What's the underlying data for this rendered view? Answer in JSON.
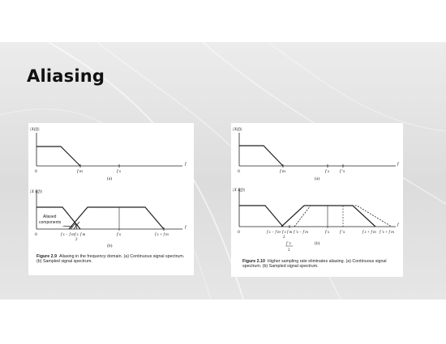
{
  "slide": {
    "title": "Aliasing",
    "colors": {
      "background": "#ffffff",
      "band": "#e2e2e2",
      "title": "#111111",
      "ink": "#222222"
    }
  },
  "figure_left": {
    "top_plot": {
      "ylabel": "|X(f)|",
      "tick_origin": "0",
      "tick_fm": "f m",
      "tick_fs": "f s",
      "axis_f": "f",
      "sublabel": "(a)"
    },
    "bottom_plot": {
      "ylabel": "|X s(f)|",
      "annotation_line1": "Aliased",
      "annotation_line2": "components",
      "tick_origin": "0",
      "tick_fs_minus_fm": "f s − f m",
      "tick_fs_half": "f s",
      "tick_fs_half_den": "2",
      "tick_fm": "f m",
      "tick_fs": "f s",
      "tick_fs_plus_fm": "f s + f m",
      "axis_f": "f",
      "sublabel": "(b)"
    },
    "caption_label": "Figure 2.9",
    "caption_text": "Aliasing in the frequency domain. (a) Continuous signal spectrum. (b) Sampled signal spectrum."
  },
  "figure_right": {
    "top_plot": {
      "ylabel": "|X(f)|",
      "tick_origin": "0",
      "tick_fm": "f m",
      "tick_fs": "f s",
      "tick_fs_prime": "f ′s",
      "axis_f": "f",
      "sublabel": "(a)"
    },
    "bottom_plot": {
      "ylabel": "|X s(f)|",
      "tick_origin": "0",
      "tick_fs_minus_fm": "f s − f m",
      "tick_fs_half": "f s",
      "tick_fs_half_den": "2",
      "tick_fm": "f m",
      "tick_fsp_minus_fm": "f ′s − f m",
      "tick_fs": "f s",
      "tick_fs_prime": "f ′s",
      "tick_fs_plus_fm": "f s + f m",
      "tick_fsp_plus_fm": "f ′s + f m",
      "tick_fsp_half": "f ′s",
      "tick_fsp_half_den": "2",
      "axis_f": "f",
      "sublabel": "(b)"
    },
    "caption_label": "Figure 2.10",
    "caption_text": "Higher sampling rate eliminates aliasing. (a) Continuous signal spectrum. (b) Sampled signal spectrum."
  }
}
